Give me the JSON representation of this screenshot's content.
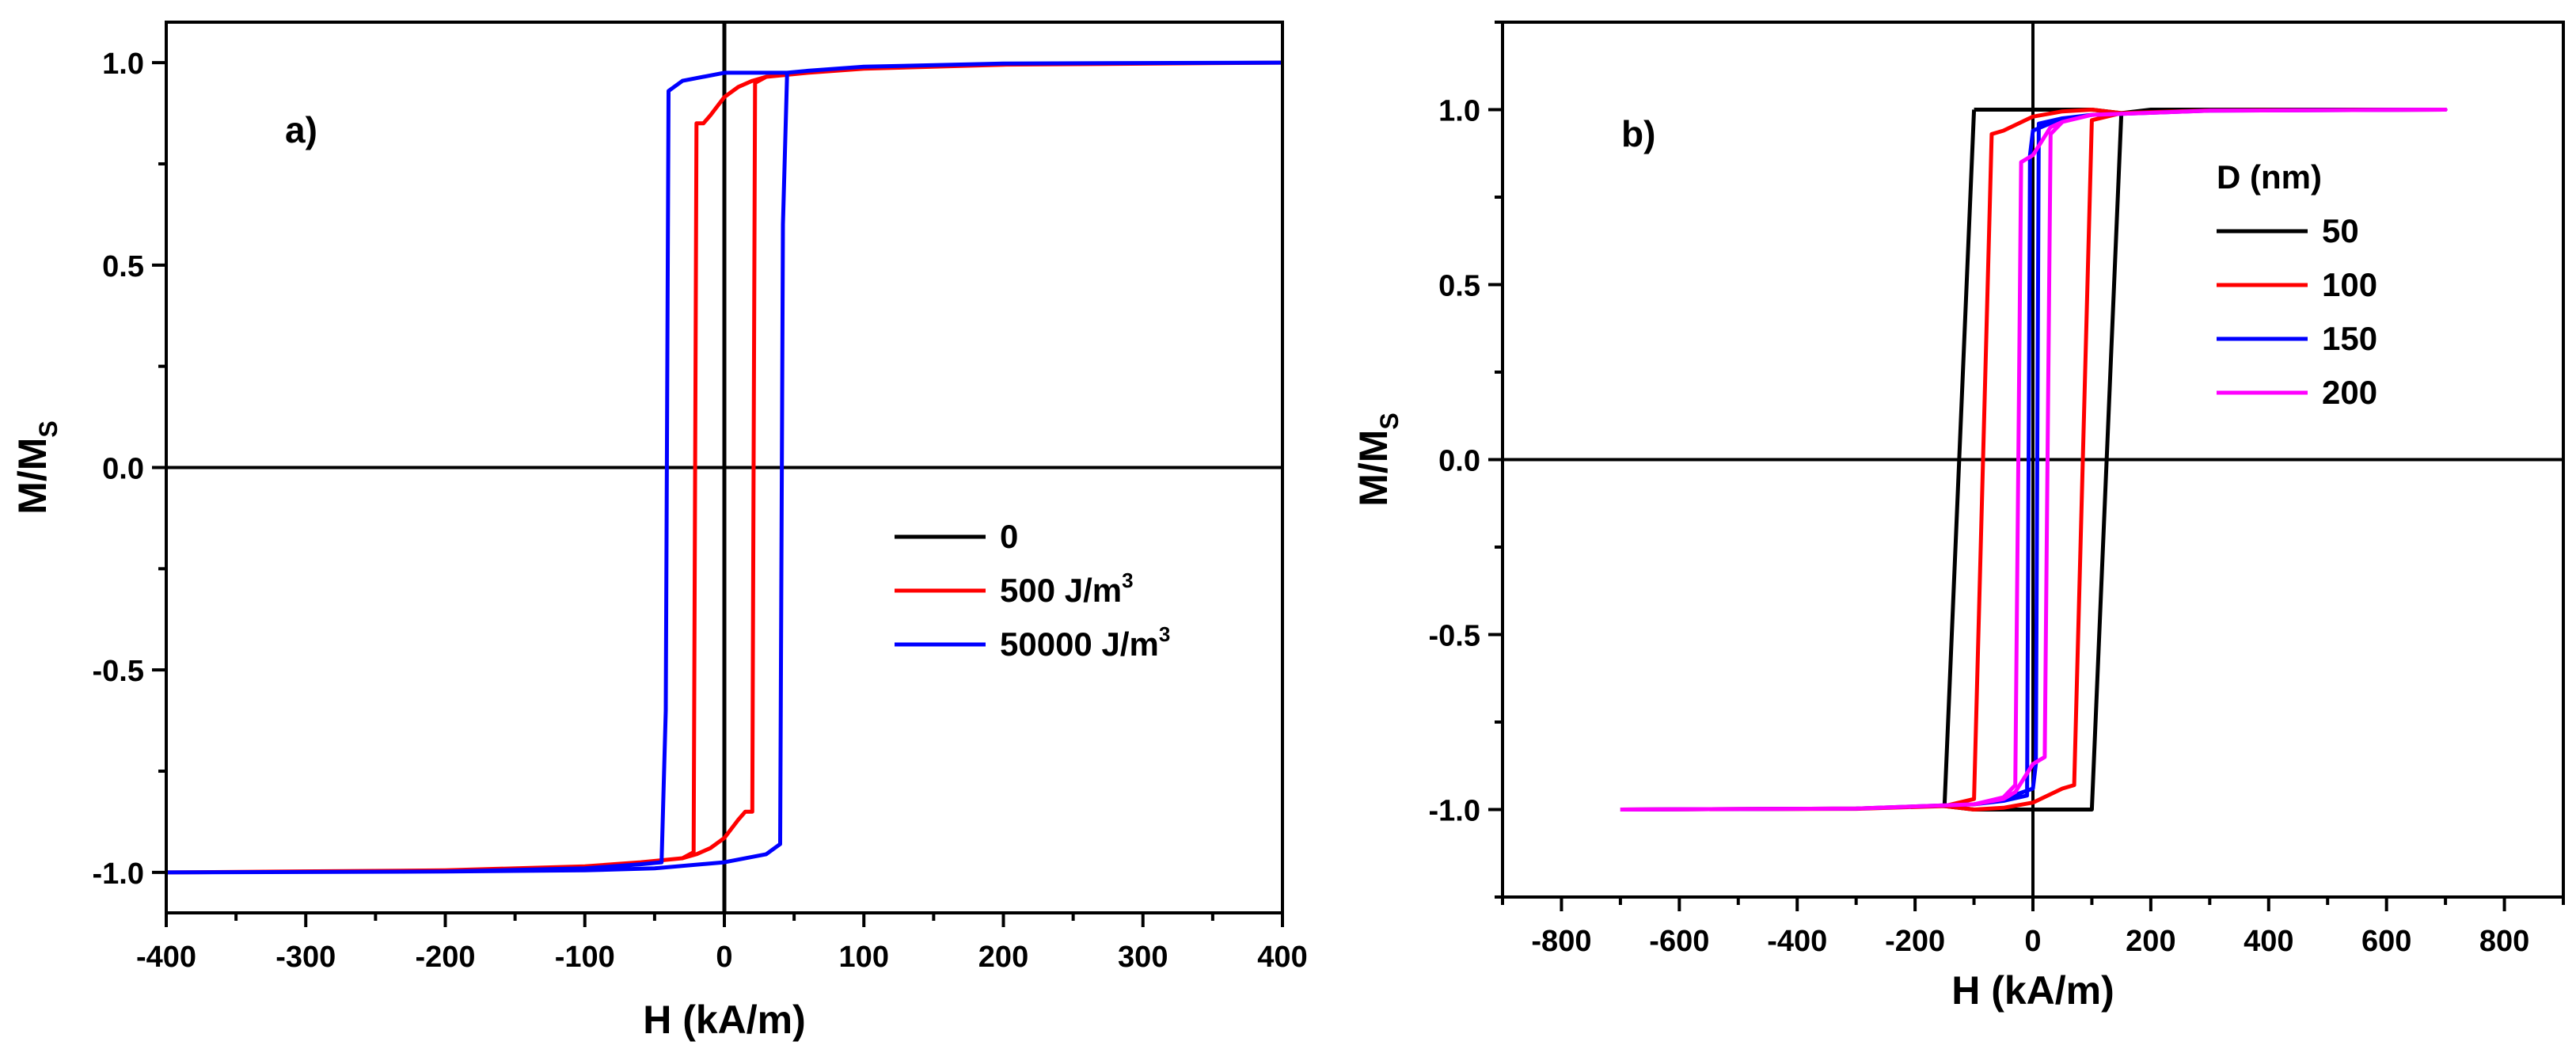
{
  "chart_data": [
    {
      "type": "line",
      "panel_label": "a)",
      "xlabel": "H (kA/m)",
      "ylabel_main": "M/M",
      "ylabel_sub": "S",
      "xlim": [
        -400,
        400
      ],
      "ylim": [
        -1.1,
        1.1
      ],
      "x_ticks": [
        -400,
        -300,
        -200,
        -100,
        0,
        100,
        200,
        300,
        400
      ],
      "x_tick_labels": [
        "-400",
        "-300",
        "-200",
        "-100",
        "0",
        "100",
        "200",
        "300",
        "400"
      ],
      "y_ticks": [
        -1.0,
        -0.5,
        0.0,
        0.5,
        1.0
      ],
      "y_tick_labels": [
        "-1.0",
        "-0.5",
        "0.0",
        "0.5",
        "1.0"
      ],
      "legend": {
        "location": "center-right",
        "entries": [
          {
            "label": "0",
            "superscript": "",
            "color": "#000000"
          },
          {
            "label": "500 J/m",
            "superscript": "3",
            "color": "#ff0000"
          },
          {
            "label": "50000 J/m",
            "superscript": "3",
            "color": "#0000ff"
          }
        ]
      },
      "series": [
        {
          "name": "0",
          "color": "#000000",
          "x": [
            0,
            0
          ],
          "y": [
            -1.1,
            1.1
          ]
        },
        {
          "name": "500 J/m3",
          "color": "#ff0000",
          "x": [
            -400,
            -200,
            -100,
            -60,
            -30,
            -20,
            -10,
            0,
            10,
            15,
            20,
            22,
            30,
            60,
            100,
            200,
            400,
            200,
            100,
            60,
            30,
            20,
            10,
            0,
            -10,
            -15,
            -20,
            -22,
            -30,
            -60,
            -100,
            -200,
            -400
          ],
          "y": [
            -1.0,
            -0.995,
            -0.985,
            -0.975,
            -0.965,
            -0.955,
            -0.94,
            -0.915,
            -0.87,
            -0.85,
            -0.85,
            0.95,
            0.965,
            0.975,
            0.985,
            0.995,
            1.0,
            0.995,
            0.985,
            0.975,
            0.965,
            0.955,
            0.94,
            0.915,
            0.87,
            0.85,
            0.85,
            -0.95,
            -0.965,
            -0.975,
            -0.985,
            -0.995,
            -1.0
          ]
        },
        {
          "name": "50000 J/m3",
          "color": "#0000ff",
          "x": [
            -400,
            -200,
            -100,
            -50,
            0,
            30,
            40,
            42,
            45,
            60,
            100,
            200,
            400,
            200,
            100,
            60,
            45,
            42,
            40,
            30,
            0,
            -30,
            -40,
            -42,
            -45,
            -60,
            -100,
            -200,
            -400
          ],
          "y": [
            -1.0,
            -0.998,
            -0.995,
            -0.99,
            -0.975,
            -0.955,
            -0.93,
            0.6,
            0.975,
            0.98,
            0.99,
            0.998,
            1.0,
            0.998,
            0.99,
            0.98,
            0.975,
            0.975,
            0.975,
            0.975,
            0.975,
            0.955,
            0.93,
            -0.6,
            -0.975,
            -0.98,
            -0.99,
            -0.998,
            -1.0
          ]
        }
      ]
    },
    {
      "type": "line",
      "panel_label": "b)",
      "xlabel": "H (kA/m)",
      "ylabel_main": "M/M",
      "ylabel_sub": "S",
      "xlim": [
        -900,
        900
      ],
      "ylim": [
        -1.25,
        1.25
      ],
      "x_ticks": [
        -800,
        -600,
        -400,
        -200,
        0,
        200,
        400,
        600,
        800
      ],
      "x_tick_labels": [
        "-800",
        "-600",
        "-400",
        "-200",
        "0",
        "200",
        "400",
        "600",
        "800"
      ],
      "y_ticks": [
        -1.0,
        -0.5,
        0.0,
        0.5,
        1.0
      ],
      "y_tick_labels": [
        "-1.0",
        "-0.5",
        "0.0",
        "0.5",
        "1.0"
      ],
      "legend": {
        "location": "right",
        "title": "D (nm)",
        "entries": [
          {
            "label": "50",
            "color": "#000000"
          },
          {
            "label": "100",
            "color": "#ff0000"
          },
          {
            "label": "150",
            "color": "#0000ff"
          },
          {
            "label": "200",
            "color": "#ff00ff"
          }
        ]
      },
      "series": [
        {
          "name": "50",
          "color": "#000000",
          "x": [
            -100,
            100,
            150,
            200,
            700,
            200,
            150,
            100,
            -100,
            -150,
            -100
          ],
          "y": [
            1.0,
            1.0,
            0.99,
            1.0,
            1.0,
            1.0,
            0.99,
            -1.0,
            -1.0,
            -0.99,
            1.0
          ]
        },
        {
          "name": "100",
          "color": "#ff0000",
          "x": [
            -700,
            -300,
            -150,
            -100,
            -50,
            0,
            50,
            70,
            100,
            150,
            300,
            700,
            300,
            150,
            100,
            50,
            0,
            -50,
            -70,
            -100,
            -150,
            -300,
            -700
          ],
          "y": [
            -1.0,
            -0.997,
            -0.99,
            -1.0,
            -0.995,
            -0.98,
            -0.94,
            -0.93,
            0.97,
            0.99,
            0.998,
            1.0,
            0.998,
            0.99,
            1.0,
            0.995,
            0.98,
            0.94,
            0.93,
            -0.97,
            -0.99,
            -0.998,
            -1.0
          ]
        },
        {
          "name": "150",
          "color": "#0000ff",
          "x": [
            -700,
            -300,
            -100,
            -50,
            0,
            5,
            10,
            50,
            100,
            300,
            700,
            300,
            100,
            50,
            0,
            -5,
            -10,
            -50,
            -100,
            -300,
            -700
          ],
          "y": [
            -1.0,
            -0.997,
            -0.985,
            -0.97,
            -0.94,
            -0.87,
            0.96,
            0.975,
            0.985,
            0.997,
            1.0,
            0.997,
            0.985,
            0.975,
            0.94,
            0.87,
            -0.96,
            -0.975,
            -0.985,
            -0.997,
            -1.0
          ]
        },
        {
          "name": "200",
          "color": "#ff00ff",
          "x": [
            -700,
            -300,
            -100,
            -50,
            -30,
            0,
            20,
            30,
            50,
            100,
            300,
            700,
            300,
            100,
            50,
            30,
            0,
            -20,
            -30,
            -50,
            -100,
            -300,
            -700
          ],
          "y": [
            -1.0,
            -0.997,
            -0.985,
            -0.97,
            -0.95,
            -0.87,
            -0.85,
            0.93,
            0.965,
            0.985,
            0.997,
            1.0,
            0.997,
            0.985,
            0.965,
            0.95,
            0.87,
            0.85,
            -0.93,
            -0.965,
            -0.985,
            -0.997,
            -1.0
          ]
        }
      ]
    }
  ]
}
